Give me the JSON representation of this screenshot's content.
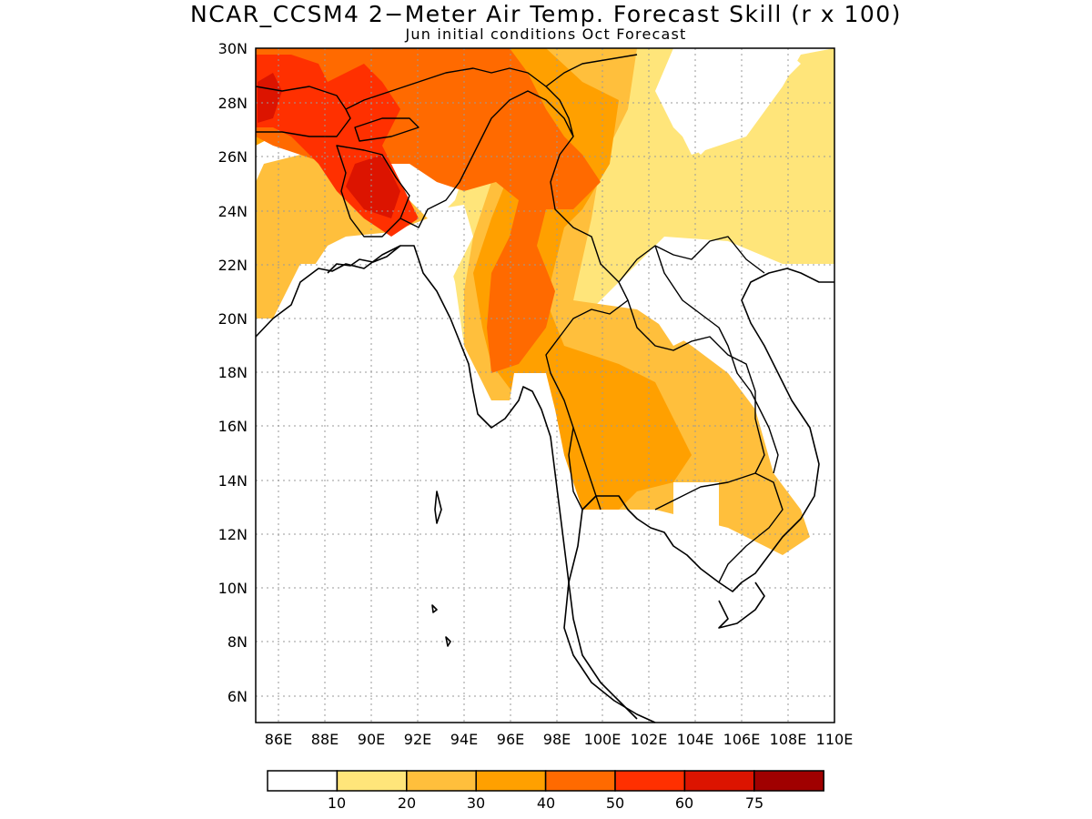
{
  "title": "NCAR_CCSM4 2−Meter Air Temp. Forecast Skill (r x 100)",
  "subtitle": "Jun initial conditions  Oct Forecast",
  "map": {
    "lon_min": 85,
    "lon_max": 110,
    "lat_min": 5,
    "lat_max": 30,
    "lat_ticks": [
      "30N",
      "28N",
      "26N",
      "24N",
      "22N",
      "20N",
      "18N",
      "16N",
      "14N",
      "12N",
      "10N",
      "8N",
      "6N"
    ],
    "lon_ticks": [
      "86E",
      "88E",
      "90E",
      "92E",
      "94E",
      "96E",
      "98E",
      "100E",
      "102E",
      "104E",
      "106E",
      "108E",
      "110E"
    ],
    "grid": true
  },
  "legend": {
    "labels": [
      "10",
      "20",
      "30",
      "40",
      "50",
      "60",
      "75"
    ],
    "colors": [
      "#ffffff",
      "#ffe57a",
      "#ffbf3c",
      "#ffa000",
      "#ff6a00",
      "#ff3000",
      "#dc1400",
      "#a00000"
    ]
  }
}
